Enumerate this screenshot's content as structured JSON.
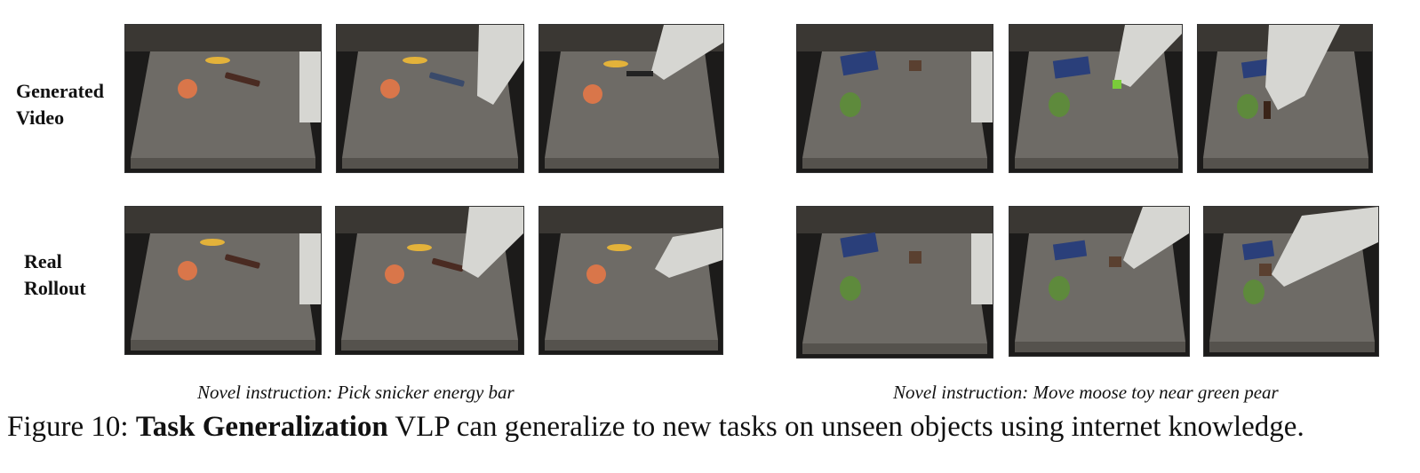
{
  "row_labels": {
    "generated": [
      "Generated",
      "Video"
    ],
    "real": [
      "Real",
      "Rollout"
    ]
  },
  "instructions": {
    "left": "Novel instruction: Pick snicker energy bar",
    "right": "Novel instruction: Move moose toy near green pear"
  },
  "caption": {
    "prefix": "Figure 10:",
    "bold": "Task Generalization",
    "rest": "VLP can generalize to new tasks on unseen objects using internet knowledge."
  },
  "colors": {
    "table_top": "#6e6b66",
    "table_edge": "#55524d",
    "orange": "#d9764a",
    "banana": "#e3b23a",
    "pear": "#5e8a3c",
    "robot_arm": "#d6d6d2"
  }
}
